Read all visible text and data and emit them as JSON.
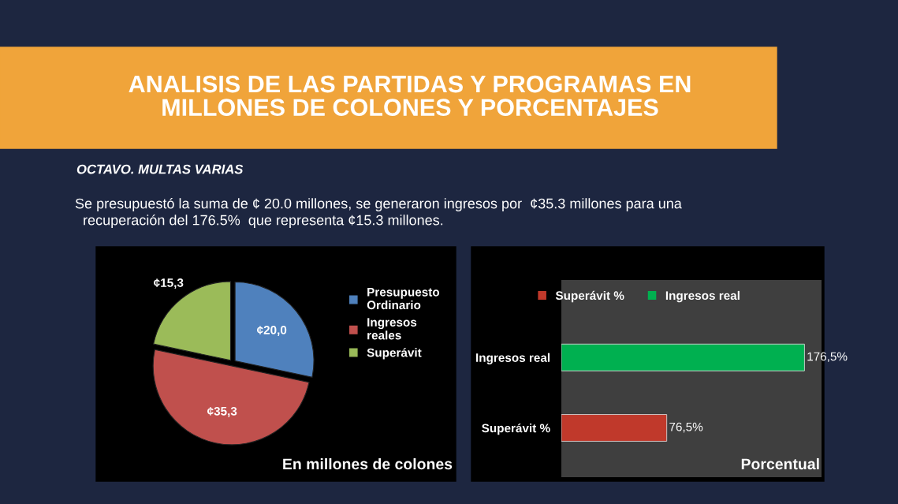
{
  "chart_data": [
    {
      "type": "pie",
      "title": "ANALISIS DE LAS PARTIDAS Y PROGRAMAS EN\nMILLONES DE COLONES Y PORCENTAJES",
      "subtitle": "OCTAVO. MULTAS VARIAS",
      "annotations": [
        "Se presupuestó la suma de ¢ 20.0 millones, se generaron ingresos por  ¢35.3 millones para una\n  recuperación del 176.5%  que representa ¢15.3 millones.",
        "En millones de colones"
      ],
      "categories": [
        "Presupuesto\nOrdinario",
        "Ingresos\nreales",
        "Superávit"
      ],
      "values": [
        20.0,
        35.3,
        15.3
      ],
      "value_labels": [
        "¢20,0",
        "¢35,3",
        "¢15,3"
      ],
      "colors": [
        "#4f81bd",
        "#c0504d",
        "#9bbb59"
      ],
      "legend": "right"
    },
    {
      "type": "bar",
      "orientation": "horizontal",
      "annotations": [
        "Porcentual"
      ],
      "categories": [
        "Ingresos real",
        "Superávit %"
      ],
      "series": [
        {
          "name": "Superávit %",
          "color": "#c0392b",
          "values": [
            null,
            76.5
          ],
          "value_labels": [
            null,
            "76,5%"
          ]
        },
        {
          "name": "Ingresos real",
          "color": "#00b050",
          "values": [
            176.5,
            null
          ],
          "value_labels": [
            "176,5%",
            null
          ]
        }
      ],
      "legend": "top"
    }
  ]
}
